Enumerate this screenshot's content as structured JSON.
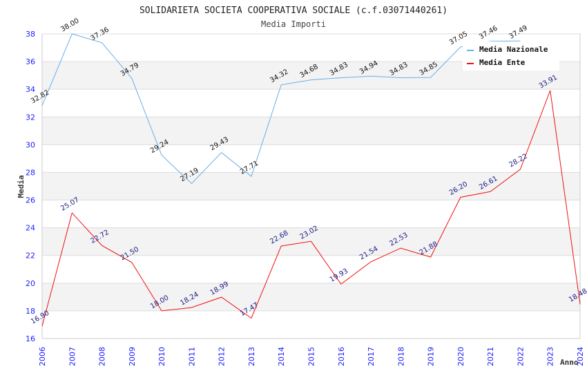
{
  "chart_data": {
    "type": "line",
    "title": "SOLIDARIETA SOCIETA COOPERATIVA SOCIALE (c.f.03071440261)",
    "subtitle": "Media Importi",
    "xlabel": "Anno",
    "ylabel": "Media",
    "ylim": [
      16,
      38
    ],
    "yticks": [
      "16",
      "18",
      "20",
      "22",
      "24",
      "26",
      "28",
      "30",
      "32",
      "34",
      "36",
      "38"
    ],
    "categories": [
      "2006",
      "2007",
      "2008",
      "2009",
      "2010",
      "2011",
      "2012",
      "2013",
      "2014",
      "2015",
      "2016",
      "2017",
      "2018",
      "2019",
      "2020",
      "2021",
      "2022",
      "2023",
      "2024"
    ],
    "grid": true,
    "legend_position": "top-right",
    "series": [
      {
        "name": "Media Nazionale",
        "color": "#6aaee8",
        "values": [
          32.82,
          38.0,
          37.36,
          34.79,
          29.24,
          27.19,
          29.43,
          27.71,
          34.32,
          34.68,
          34.83,
          34.94,
          34.83,
          34.85,
          37.05,
          37.46,
          37.49,
          null,
          null
        ],
        "labels": [
          "32.82",
          "38.00",
          "37.36",
          "34.79",
          "29.24",
          "27.19",
          "29.43",
          "27.71",
          "34.32",
          "34.68",
          "34.83",
          "34.94",
          "34.83",
          "34.85",
          "37.05",
          "37.46",
          "37.49",
          null,
          null
        ]
      },
      {
        "name": "Media Ente",
        "color": "#ee1111",
        "values": [
          16.9,
          25.07,
          22.72,
          21.5,
          18.0,
          18.24,
          18.99,
          17.47,
          22.68,
          23.02,
          19.93,
          21.54,
          22.53,
          21.88,
          26.2,
          26.61,
          28.22,
          33.91,
          18.48
        ],
        "labels": [
          "16.90",
          "25.07",
          "22.72",
          "21.50",
          "18.00",
          "18.24",
          "18.99",
          "17.47",
          "22.68",
          "23.02",
          "19.93",
          "21.54",
          "22.53",
          "21.88",
          "26.20",
          "26.61",
          "28.22",
          "33.91",
          "18.48"
        ]
      }
    ]
  }
}
